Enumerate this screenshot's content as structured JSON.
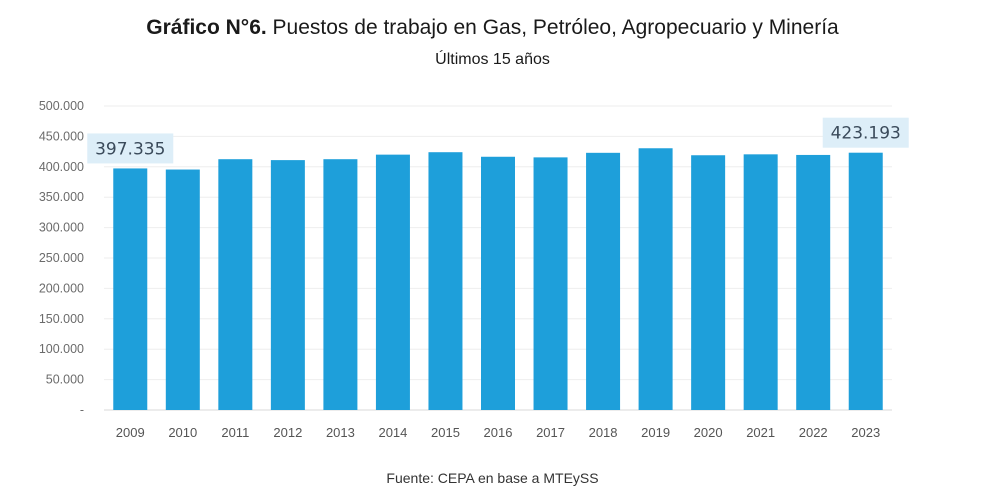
{
  "header": {
    "title_bold": "Gráfico N°6.",
    "title_rest": " Puestos de trabajo en Gas, Petróleo, Agropecuario y Minería",
    "subtitle": "Últimos 15 años"
  },
  "footer": {
    "source": "Fuente: CEPA en base a MTEySS"
  },
  "colors": {
    "bar": "#1e9fda",
    "callout_bg": "#ddeef8",
    "grid": "#eeeeee"
  },
  "chart_data": {
    "type": "bar",
    "categories": [
      "2009",
      "2010",
      "2011",
      "2012",
      "2013",
      "2014",
      "2015",
      "2016",
      "2017",
      "2018",
      "2019",
      "2020",
      "2021",
      "2022",
      "2023"
    ],
    "values": [
      397335,
      395500,
      412500,
      411000,
      412500,
      420000,
      424000,
      416500,
      415500,
      423000,
      430500,
      419000,
      420500,
      419500,
      423193
    ],
    "ylim": [
      0,
      500000
    ],
    "yticks": [
      0,
      50000,
      100000,
      150000,
      200000,
      250000,
      300000,
      350000,
      400000,
      450000,
      500000
    ],
    "ytick_labels": [
      "-",
      "50.000",
      "100.000",
      "150.000",
      "200.000",
      "250.000",
      "300.000",
      "350.000",
      "400.000",
      "450.000",
      "500.000"
    ],
    "grid": true,
    "annotations": [
      {
        "category": "2009",
        "text": "397.335"
      },
      {
        "category": "2023",
        "text": "423.193"
      }
    ]
  }
}
